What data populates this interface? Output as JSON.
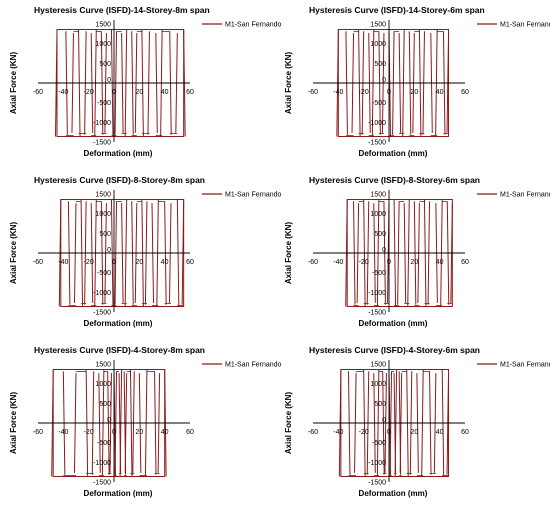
{
  "chart_data": [
    {
      "type": "line",
      "title": "Hysteresis Curve (ISFD)-14-Storey-8m span",
      "xlabel": "Deformation (mm)",
      "ylabel": "Axial Force (KN)",
      "xlim": [
        -60,
        60
      ],
      "ylim": [
        -1500,
        1500
      ],
      "xticks": [
        -60,
        -40,
        -20,
        0,
        20,
        40,
        60
      ],
      "yticks": [
        1500,
        1000,
        500,
        0,
        -500,
        -1000,
        -1500
      ],
      "legend_position": "top-right",
      "grid": false,
      "series": [
        {
          "name": "M1-San Fernando",
          "color": "#8b1a1a",
          "envelope": {
            "x_min": -45,
            "x_max": 55,
            "y_min": -1360,
            "y_max": 1360
          },
          "reversal_x": [
            -45,
            -38,
            -32,
            -28,
            -22,
            -18,
            -14,
            -10,
            -6,
            -2,
            2,
            6,
            10,
            14,
            18,
            22,
            28,
            33,
            38,
            44,
            50,
            55
          ]
        }
      ]
    },
    {
      "type": "line",
      "title": "Hysteresis Curve (ISFD)-14-Storey-6m span",
      "xlabel": "Deformation (mm)",
      "ylabel": "Axial Force (KN)",
      "xlim": [
        -60,
        60
      ],
      "ylim": [
        -1500,
        1500
      ],
      "xticks": [
        -60,
        -40,
        -20,
        0,
        20,
        40,
        60
      ],
      "yticks": [
        1500,
        1000,
        500,
        0,
        -500,
        -1000,
        -1500
      ],
      "legend_position": "top-right",
      "grid": false,
      "series": [
        {
          "name": "M1-San Fernando",
          "color": "#8b1a1a",
          "envelope": {
            "x_min": -40,
            "x_max": 47,
            "y_min": -1360,
            "y_max": 1360
          },
          "reversal_x": [
            -40,
            -34,
            -28,
            -24,
            -20,
            -16,
            -12,
            -8,
            -4,
            0,
            4,
            8,
            12,
            16,
            20,
            24,
            28,
            33,
            38,
            43,
            47
          ]
        }
      ]
    },
    {
      "type": "line",
      "title": "Hysteresis Curve (ISFD)-8-Storey-8m span",
      "xlabel": "Deformation (mm)",
      "ylabel": "Axial Force (KN)",
      "xlim": [
        -60,
        60
      ],
      "ylim": [
        -1500,
        1500
      ],
      "xticks": [
        -60,
        -40,
        -20,
        0,
        20,
        40,
        60
      ],
      "yticks": [
        1500,
        1000,
        500,
        0,
        -500,
        -1000,
        -1500
      ],
      "legend_position": "top-right",
      "grid": false,
      "series": [
        {
          "name": "M1-San Fernando",
          "color": "#8b1a1a",
          "envelope": {
            "x_min": -42,
            "x_max": 55,
            "y_min": -1360,
            "y_max": 1360
          },
          "reversal_x": [
            -42,
            -36,
            -30,
            -26,
            -22,
            -18,
            -14,
            -10,
            -6,
            -2,
            2,
            6,
            10,
            14,
            18,
            22,
            26,
            30,
            35,
            40,
            45,
            50,
            55
          ]
        }
      ]
    },
    {
      "type": "line",
      "title": "Hysteresis Curve (ISFD)-8-Storey-6m span",
      "xlabel": "Deformation (mm)",
      "ylabel": "Axial Force (KN)",
      "xlim": [
        -60,
        60
      ],
      "ylim": [
        -1500,
        1500
      ],
      "xticks": [
        -60,
        -40,
        -20,
        0,
        20,
        40,
        60
      ],
      "yticks": [
        1500,
        1000,
        500,
        0,
        -500,
        -1000,
        -1500
      ],
      "legend_position": "top-right",
      "grid": false,
      "series": [
        {
          "name": "M1-San Fernando",
          "color": "#8b1a1a",
          "envelope": {
            "x_min": -33,
            "x_max": 50,
            "y_min": -1360,
            "y_max": 1360
          },
          "reversal_x": [
            -33,
            -28,
            -24,
            -20,
            -16,
            -12,
            -8,
            -4,
            0,
            4,
            8,
            12,
            16,
            20,
            24,
            28,
            32,
            37,
            42,
            46,
            50
          ]
        }
      ]
    },
    {
      "type": "line",
      "title": "Hysteresis Curve (ISFD)-4-Storey-8m span",
      "xlabel": "Deformation (mm)",
      "ylabel": "Axial Force (KN)",
      "xlim": [
        -60,
        60
      ],
      "ylim": [
        -1500,
        1500
      ],
      "xticks": [
        -60,
        -40,
        -20,
        0,
        20,
        40,
        60
      ],
      "yticks": [
        1500,
        1000,
        500,
        0,
        -500,
        -1000,
        -1500
      ],
      "legend_position": "top-right",
      "grid": false,
      "series": [
        {
          "name": "M1-San Fernando",
          "color": "#8b1a1a",
          "envelope": {
            "x_min": -48,
            "x_max": 40,
            "y_min": -1360,
            "y_max": 1360
          },
          "reversal_x": [
            -48,
            -40,
            -30,
            -22,
            -16,
            -12,
            -8,
            -5,
            -2,
            0,
            2,
            4,
            6,
            8,
            10,
            13,
            16,
            20,
            26,
            32,
            36,
            40
          ]
        }
      ]
    },
    {
      "type": "line",
      "title": "Hysteresis Curve (ISFD)-4-Storey-6m span",
      "xlabel": "Deformation (mm)",
      "ylabel": "Axial Force (KN)",
      "xlim": [
        -60,
        60
      ],
      "ylim": [
        -1500,
        1500
      ],
      "xticks": [
        -60,
        -40,
        -20,
        0,
        20,
        40,
        60
      ],
      "yticks": [
        1500,
        1000,
        500,
        0,
        -500,
        -1000,
        -1500
      ],
      "legend_position": "top-right",
      "grid": false,
      "series": [
        {
          "name": "M1-San Fernando",
          "color": "#8b1a1a",
          "envelope": {
            "x_min": -38,
            "x_max": 47,
            "y_min": -1360,
            "y_max": 1360
          },
          "reversal_x": [
            -38,
            -32,
            -26,
            -20,
            -16,
            -12,
            -8,
            -5,
            -2,
            0,
            2,
            4,
            6,
            8,
            10,
            14,
            18,
            22,
            27,
            32,
            37,
            42,
            47
          ]
        }
      ]
    }
  ]
}
